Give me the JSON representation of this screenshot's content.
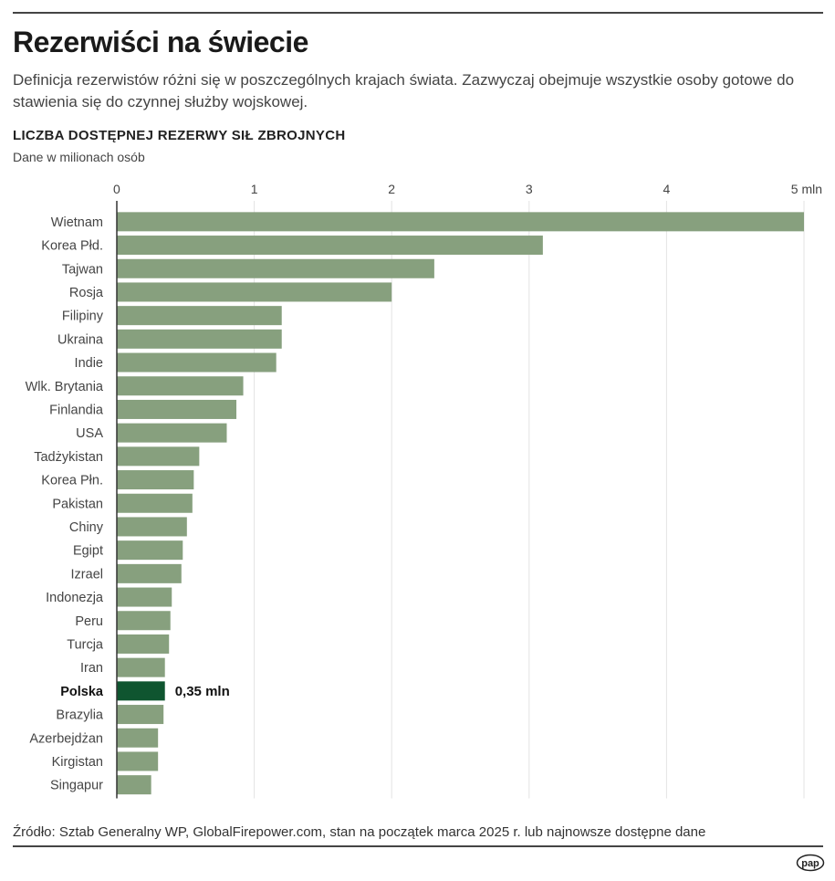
{
  "header": {
    "title": "Rezerwiści na świecie",
    "subtitle": "Definicja rezerwistów różni się w poszczególnych krajach świata. Zazwyczaj obejmuje wszystkie osoby gotowe do stawienia się do czynnej służby wojskowej.",
    "chart_title": "LICZBA DOSTĘPNEJ REZERWY SIŁ ZBROJNYCH",
    "chart_unit": "Dane w milionach osób"
  },
  "footer": {
    "source": "Źródło: Sztab Generalny WP, GlobalFirepower.com, stan na początek marca 2025 r. lub najnowsze dostępne dane",
    "logo": "pap"
  },
  "colors": {
    "bar": "#87a07e",
    "highlight": "#0f5530",
    "grid": "#e3e3e3",
    "axis": "#333333"
  },
  "chart_data": {
    "type": "bar",
    "orientation": "horizontal",
    "title": "LICZBA DOSTĘPNEJ REZERWY SIŁ ZBROJNYCH",
    "xlabel": "",
    "ylabel": "",
    "xlim": [
      0,
      5
    ],
    "ticks": [
      0,
      1,
      2,
      3,
      4,
      5
    ],
    "tick_labels": [
      "0",
      "1",
      "2",
      "3",
      "4",
      "5 mln"
    ],
    "grid": true,
    "categories": [
      "Wietnam",
      "Korea Płd.",
      "Tajwan",
      "Rosja",
      "Filipiny",
      "Ukraina",
      "Indie",
      "Wlk. Brytania",
      "Finlandia",
      "USA",
      "Tadżykistan",
      "Korea Płn.",
      "Pakistan",
      "Chiny",
      "Egipt",
      "Izrael",
      "Indonezja",
      "Peru",
      "Turcja",
      "Iran",
      "Polska",
      "Brazylia",
      "Azerbejdżan",
      "Kirgistan",
      "Singapur"
    ],
    "values": [
      5.0,
      3.1,
      2.31,
      2.0,
      1.2,
      1.2,
      1.16,
      0.92,
      0.87,
      0.8,
      0.6,
      0.56,
      0.55,
      0.51,
      0.48,
      0.47,
      0.4,
      0.39,
      0.38,
      0.35,
      0.35,
      0.34,
      0.3,
      0.3,
      0.25
    ],
    "highlight": "Polska",
    "annotations": [
      {
        "category": "Polska",
        "text": "0,35 mln"
      }
    ]
  }
}
